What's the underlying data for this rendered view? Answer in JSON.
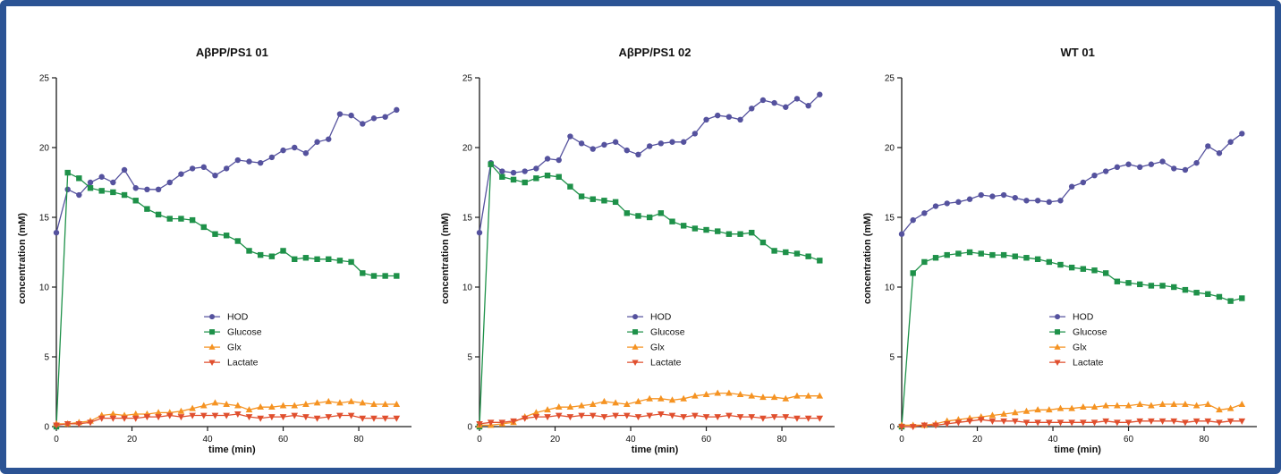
{
  "frame": {
    "border_color": "#2b5394",
    "background": "#ffffff"
  },
  "series_meta": [
    {
      "name": "HOD",
      "color": "#55529e",
      "marker": "circle"
    },
    {
      "name": "Glucose",
      "color": "#1e9149",
      "marker": "square"
    },
    {
      "name": "Glx",
      "color": "#f59322",
      "marker": "triangle-up"
    },
    {
      "name": "Lactate",
      "color": "#e04f2e",
      "marker": "triangle-down"
    }
  ],
  "chart_data": [
    {
      "type": "line",
      "title": "AβPP/PS1 01",
      "xlabel": "time (min)",
      "ylabel": "concentration (mM)",
      "xlim": [
        0,
        93
      ],
      "ylim": [
        0,
        25
      ],
      "xticks": [
        0,
        20,
        40,
        60,
        80
      ],
      "yticks": [
        0,
        5,
        10,
        15,
        20,
        25
      ],
      "legend": [
        "HOD",
        "Glucose",
        "Glx",
        "Lactate"
      ],
      "legend_position": "inside",
      "x": [
        0,
        3,
        6,
        9,
        12,
        15,
        18,
        21,
        24,
        27,
        30,
        33,
        36,
        39,
        42,
        45,
        48,
        51,
        54,
        57,
        60,
        63,
        66,
        69,
        72,
        75,
        78,
        81,
        84,
        87,
        90
      ],
      "series": [
        {
          "name": "HOD",
          "values": [
            13.9,
            17.0,
            16.6,
            17.5,
            17.9,
            17.5,
            18.4,
            17.1,
            17.0,
            17.0,
            17.5,
            18.1,
            18.5,
            18.6,
            18.0,
            18.5,
            19.1,
            19.0,
            18.9,
            19.3,
            19.8,
            20.0,
            19.6,
            20.4,
            20.6,
            22.4,
            22.3,
            21.7,
            22.1,
            22.2,
            22.7
          ]
        },
        {
          "name": "Glucose",
          "values": [
            0.0,
            18.2,
            17.8,
            17.1,
            16.9,
            16.8,
            16.6,
            16.2,
            15.6,
            15.2,
            14.9,
            14.9,
            14.8,
            14.3,
            13.8,
            13.7,
            13.3,
            12.6,
            12.3,
            12.2,
            12.6,
            12.0,
            12.1,
            12.0,
            12.0,
            11.9,
            11.8,
            11.0,
            10.8,
            10.8,
            10.8
          ]
        },
        {
          "name": "Glx",
          "values": [
            0.2,
            0.2,
            0.3,
            0.4,
            0.8,
            0.9,
            0.8,
            0.9,
            0.9,
            1.0,
            1.0,
            1.1,
            1.3,
            1.5,
            1.7,
            1.6,
            1.5,
            1.2,
            1.4,
            1.4,
            1.5,
            1.5,
            1.6,
            1.7,
            1.8,
            1.7,
            1.8,
            1.7,
            1.6,
            1.6,
            1.6
          ]
        },
        {
          "name": "Lactate",
          "values": [
            0.1,
            0.2,
            0.2,
            0.3,
            0.6,
            0.6,
            0.6,
            0.6,
            0.7,
            0.7,
            0.8,
            0.7,
            0.8,
            0.8,
            0.8,
            0.8,
            0.9,
            0.7,
            0.6,
            0.7,
            0.7,
            0.8,
            0.7,
            0.6,
            0.7,
            0.8,
            0.8,
            0.6,
            0.6,
            0.6,
            0.6
          ]
        }
      ]
    },
    {
      "type": "line",
      "title": "AβPP/PS1 02",
      "xlabel": "time (min)",
      "ylabel": "concentration (mM)",
      "xlim": [
        0,
        93
      ],
      "ylim": [
        0,
        25
      ],
      "xticks": [
        0,
        20,
        40,
        60,
        80
      ],
      "yticks": [
        0,
        5,
        10,
        15,
        20,
        25
      ],
      "legend": [
        "HOD",
        "Glucose",
        "Glx",
        "Lactate"
      ],
      "legend_position": "inside",
      "x": [
        0,
        3,
        6,
        9,
        12,
        15,
        18,
        21,
        24,
        27,
        30,
        33,
        36,
        39,
        42,
        45,
        48,
        51,
        54,
        57,
        60,
        63,
        66,
        69,
        72,
        75,
        78,
        81,
        84,
        87,
        90
      ],
      "series": [
        {
          "name": "HOD",
          "values": [
            13.9,
            18.9,
            18.3,
            18.2,
            18.3,
            18.5,
            19.2,
            19.1,
            20.8,
            20.3,
            19.9,
            20.2,
            20.4,
            19.8,
            19.5,
            20.1,
            20.3,
            20.4,
            20.4,
            21.0,
            22.0,
            22.3,
            22.2,
            22.0,
            22.8,
            23.4,
            23.2,
            22.9,
            23.5,
            23.0,
            23.8
          ]
        },
        {
          "name": "Glucose",
          "values": [
            0.0,
            18.8,
            17.9,
            17.7,
            17.5,
            17.8,
            18.0,
            17.9,
            17.2,
            16.5,
            16.3,
            16.2,
            16.1,
            15.3,
            15.1,
            15.0,
            15.3,
            14.7,
            14.4,
            14.2,
            14.1,
            14.0,
            13.8,
            13.8,
            13.9,
            13.2,
            12.6,
            12.5,
            12.4,
            12.2,
            11.9
          ]
        },
        {
          "name": "Glx",
          "values": [
            0.1,
            0.1,
            0.2,
            0.3,
            0.7,
            1.0,
            1.2,
            1.4,
            1.4,
            1.5,
            1.6,
            1.8,
            1.7,
            1.6,
            1.8,
            2.0,
            2.0,
            1.9,
            2.0,
            2.2,
            2.3,
            2.4,
            2.4,
            2.3,
            2.2,
            2.1,
            2.1,
            2.0,
            2.2,
            2.2,
            2.2
          ]
        },
        {
          "name": "Lactate",
          "values": [
            0.2,
            0.3,
            0.3,
            0.4,
            0.6,
            0.7,
            0.7,
            0.8,
            0.7,
            0.8,
            0.8,
            0.7,
            0.8,
            0.8,
            0.7,
            0.8,
            0.9,
            0.8,
            0.7,
            0.8,
            0.7,
            0.7,
            0.8,
            0.7,
            0.7,
            0.6,
            0.7,
            0.7,
            0.6,
            0.6,
            0.6
          ]
        }
      ]
    },
    {
      "type": "line",
      "title": "WT 01",
      "xlabel": "time (min)",
      "ylabel": "concentration (mM)",
      "xlim": [
        0,
        93
      ],
      "ylim": [
        0,
        25
      ],
      "xticks": [
        0,
        20,
        40,
        60,
        80
      ],
      "yticks": [
        0,
        5,
        10,
        15,
        20,
        25
      ],
      "legend": [
        "HOD",
        "Glucose",
        "Glx",
        "Lactate"
      ],
      "legend_position": "inside",
      "x": [
        0,
        3,
        6,
        9,
        12,
        15,
        18,
        21,
        24,
        27,
        30,
        33,
        36,
        39,
        42,
        45,
        48,
        51,
        54,
        57,
        60,
        63,
        66,
        69,
        72,
        75,
        78,
        81,
        84,
        87,
        90
      ],
      "series": [
        {
          "name": "HOD",
          "values": [
            13.8,
            14.8,
            15.3,
            15.8,
            16.0,
            16.1,
            16.3,
            16.6,
            16.5,
            16.6,
            16.4,
            16.2,
            16.2,
            16.1,
            16.2,
            17.2,
            17.5,
            18.0,
            18.3,
            18.6,
            18.8,
            18.6,
            18.8,
            19.0,
            18.5,
            18.4,
            18.9,
            20.1,
            19.6,
            20.4,
            21.0
          ]
        },
        {
          "name": "Glucose",
          "values": [
            0.0,
            11.0,
            11.8,
            12.1,
            12.3,
            12.4,
            12.5,
            12.4,
            12.3,
            12.3,
            12.2,
            12.1,
            12.0,
            11.8,
            11.6,
            11.4,
            11.3,
            11.2,
            11.0,
            10.4,
            10.3,
            10.2,
            10.1,
            10.1,
            10.0,
            9.8,
            9.6,
            9.5,
            9.3,
            9.0,
            9.2
          ]
        },
        {
          "name": "Glx",
          "values": [
            0.1,
            0.1,
            0.1,
            0.2,
            0.4,
            0.5,
            0.6,
            0.7,
            0.8,
            0.9,
            1.0,
            1.1,
            1.2,
            1.2,
            1.3,
            1.3,
            1.4,
            1.4,
            1.5,
            1.5,
            1.5,
            1.6,
            1.5,
            1.6,
            1.6,
            1.6,
            1.5,
            1.6,
            1.2,
            1.3,
            1.6
          ]
        },
        {
          "name": "Lactate",
          "values": [
            0.0,
            0.0,
            0.1,
            0.1,
            0.2,
            0.3,
            0.4,
            0.5,
            0.4,
            0.4,
            0.4,
            0.3,
            0.3,
            0.3,
            0.3,
            0.3,
            0.3,
            0.3,
            0.4,
            0.3,
            0.3,
            0.4,
            0.4,
            0.4,
            0.4,
            0.3,
            0.4,
            0.4,
            0.3,
            0.4,
            0.4
          ]
        }
      ]
    }
  ]
}
